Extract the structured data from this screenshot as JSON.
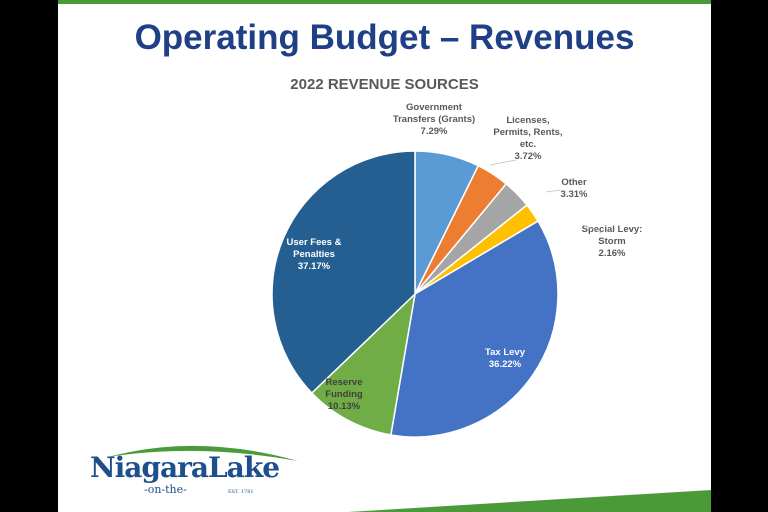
{
  "slide": {
    "title": "Operating Budget – Revenues"
  },
  "logo": {
    "name": "NiagaraLake",
    "sub": "-on-the-",
    "est": "EST. 1781"
  },
  "colors": {
    "title": "#1f3f86",
    "accent_green": "#4a9a3a"
  },
  "chart_data": {
    "type": "pie",
    "title": "2022 REVENUE SOURCES",
    "unit": "%",
    "slices": [
      {
        "label_lines": [
          "Government",
          "Transfers (Grants)",
          "7.29%"
        ],
        "value": 7.29,
        "color": "#5b9bd5"
      },
      {
        "label_lines": [
          "Licenses,",
          "Permits, Rents,",
          "etc.",
          "3.72%"
        ],
        "value": 3.72,
        "color": "#ed7d31"
      },
      {
        "label_lines": [
          "Other",
          "3.31%"
        ],
        "value": 3.31,
        "color": "#a5a5a5"
      },
      {
        "label_lines": [
          "Special Levy:",
          "Storm",
          "2.16%"
        ],
        "value": 2.16,
        "color": "#ffc000"
      },
      {
        "label_lines": [
          "Tax Levy",
          "36.22%"
        ],
        "value": 36.22,
        "color": "#4472c4"
      },
      {
        "label_lines": [
          "Reserve",
          "Funding",
          "10.13%"
        ],
        "value": 10.13,
        "color": "#70ad47"
      },
      {
        "label_lines": [
          "User Fees &",
          "Penalties",
          "37.17%"
        ],
        "value": 37.17,
        "color": "#255e91"
      }
    ]
  }
}
